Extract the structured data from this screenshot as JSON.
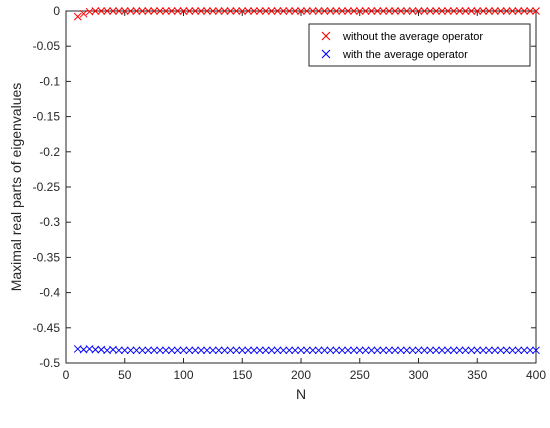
{
  "chart_data": {
    "type": "scatter",
    "title": "",
    "xlabel": "N",
    "ylabel": "Maximal real parts of eigenvalues",
    "xlim": [
      0,
      400
    ],
    "ylim": [
      -0.5,
      0
    ],
    "xticks": [
      "0",
      "50",
      "100",
      "150",
      "200",
      "250",
      "300",
      "350",
      "400"
    ],
    "yticks": [
      "0",
      "-0.05",
      "-0.1",
      "-0.15",
      "-0.2",
      "-0.25",
      "-0.3",
      "-0.35",
      "-0.4",
      "-0.45",
      "-0.5"
    ],
    "grid": false,
    "legend_position": "top-right",
    "marker": "x",
    "series": [
      {
        "name": "without the average operator",
        "color": "#ff0000",
        "x": [
          10,
          15,
          20,
          25,
          30,
          35,
          40,
          45,
          50,
          55,
          60,
          65,
          70,
          75,
          80,
          85,
          90,
          95,
          100,
          105,
          110,
          115,
          120,
          125,
          130,
          135,
          140,
          145,
          150,
          155,
          160,
          165,
          170,
          175,
          180,
          185,
          190,
          195,
          200,
          205,
          210,
          215,
          220,
          225,
          230,
          235,
          240,
          245,
          250,
          255,
          260,
          265,
          270,
          275,
          280,
          285,
          290,
          295,
          300,
          305,
          310,
          315,
          320,
          325,
          330,
          335,
          340,
          345,
          350,
          355,
          360,
          365,
          370,
          375,
          380,
          385,
          390,
          395,
          400
        ],
        "y": [
          -0.008,
          -0.004,
          -0.001,
          0,
          0,
          0,
          0,
          0,
          0,
          0,
          0,
          0,
          0,
          0,
          0,
          0,
          0,
          0,
          0,
          0,
          0,
          0,
          0,
          0,
          0,
          0,
          0,
          0,
          0,
          0,
          0,
          0,
          0,
          0,
          0,
          0,
          0,
          0,
          0,
          0,
          0,
          0,
          0,
          0,
          0,
          0,
          0,
          0,
          0,
          0,
          0,
          0,
          0,
          0,
          0,
          0,
          0,
          0,
          0,
          0,
          0,
          0,
          0,
          0,
          0,
          0,
          0,
          0,
          0,
          0,
          0,
          0,
          0,
          0,
          0,
          0,
          0,
          0,
          0
        ]
      },
      {
        "name": "with the average operator",
        "color": "#0000ff",
        "x": [
          10,
          15,
          20,
          25,
          30,
          35,
          40,
          45,
          50,
          55,
          60,
          65,
          70,
          75,
          80,
          85,
          90,
          95,
          100,
          105,
          110,
          115,
          120,
          125,
          130,
          135,
          140,
          145,
          150,
          155,
          160,
          165,
          170,
          175,
          180,
          185,
          190,
          195,
          200,
          205,
          210,
          215,
          220,
          225,
          230,
          235,
          240,
          245,
          250,
          255,
          260,
          265,
          270,
          275,
          280,
          285,
          290,
          295,
          300,
          305,
          310,
          315,
          320,
          325,
          330,
          335,
          340,
          345,
          350,
          355,
          360,
          365,
          370,
          375,
          380,
          385,
          390,
          395,
          400
        ],
        "y": [
          -0.48,
          -0.481,
          -0.48,
          -0.481,
          -0.481,
          -0.482,
          -0.481,
          -0.482,
          -0.482,
          -0.482,
          -0.482,
          -0.482,
          -0.482,
          -0.482,
          -0.482,
          -0.482,
          -0.482,
          -0.482,
          -0.482,
          -0.482,
          -0.482,
          -0.482,
          -0.482,
          -0.482,
          -0.482,
          -0.482,
          -0.482,
          -0.482,
          -0.482,
          -0.482,
          -0.482,
          -0.482,
          -0.482,
          -0.482,
          -0.482,
          -0.482,
          -0.482,
          -0.482,
          -0.482,
          -0.482,
          -0.482,
          -0.482,
          -0.482,
          -0.482,
          -0.482,
          -0.482,
          -0.482,
          -0.482,
          -0.482,
          -0.482,
          -0.482,
          -0.482,
          -0.482,
          -0.482,
          -0.482,
          -0.482,
          -0.482,
          -0.482,
          -0.482,
          -0.482,
          -0.482,
          -0.482,
          -0.482,
          -0.482,
          -0.482,
          -0.482,
          -0.482,
          -0.482,
          -0.482,
          -0.482,
          -0.482,
          -0.482,
          -0.482,
          -0.482,
          -0.482,
          -0.482,
          -0.482,
          -0.482,
          -0.482
        ]
      }
    ]
  }
}
